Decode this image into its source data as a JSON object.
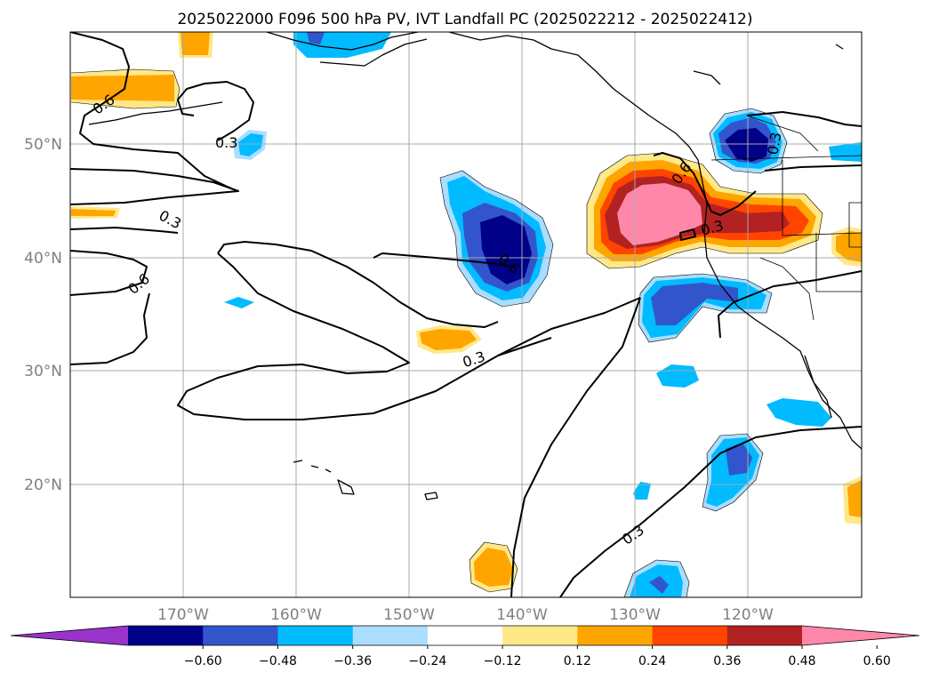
{
  "title": "2025022000 F096 500 hPa PV, IVT Landfall PC (2025022212 - 2025022412)",
  "lat_labels": [
    "50°N",
    "40°N",
    "30°N",
    "20°N"
  ],
  "lon_labels": [
    "170°W",
    "160°W",
    "150°W",
    "140°W",
    "130°W",
    "120°W"
  ],
  "colorbar": {
    "ticks": [
      "−0.60",
      "−0.48",
      "−0.36",
      "−0.24",
      "−0.12",
      "0.12",
      "0.24",
      "0.36",
      "0.48",
      "0.60"
    ],
    "colors": [
      "#9933cc",
      "#000088",
      "#3355cc",
      "#00bbff",
      "#aaddff",
      "#ffffff",
      "#ffe888",
      "#ffa500",
      "#ff4400",
      "#b22222",
      "#ff88aa"
    ]
  },
  "contour_labels": [
    "0.6",
    "0.3",
    "0.3",
    "0.6",
    "0.6",
    "0.3",
    "0.3",
    "0.6",
    "0.3",
    "0.3"
  ]
}
